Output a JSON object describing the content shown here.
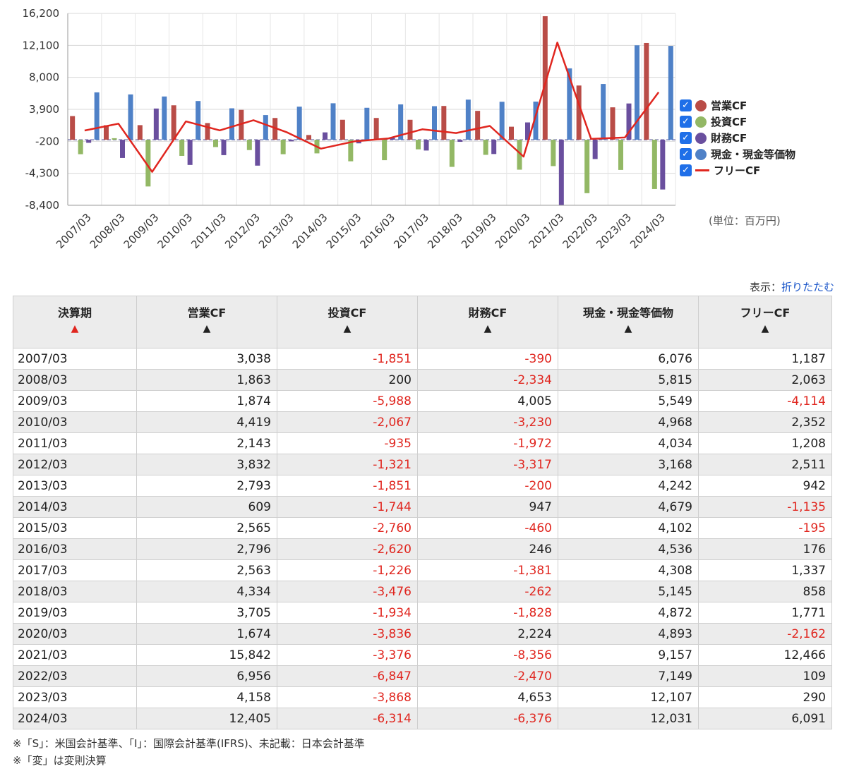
{
  "chart_data": {
    "type": "bar",
    "categories": [
      "2007/03",
      "2008/03",
      "2009/03",
      "2010/03",
      "2011/03",
      "2012/03",
      "2013/03",
      "2014/03",
      "2015/03",
      "2016/03",
      "2017/03",
      "2018/03",
      "2019/03",
      "2020/03",
      "2021/03",
      "2022/03",
      "2023/03",
      "2024/03"
    ],
    "series": [
      {
        "name": "営業CF",
        "type": "bar",
        "color": "#b94c47",
        "values": [
          3038,
          1863,
          1874,
          4419,
          2143,
          3832,
          2793,
          609,
          2565,
          2796,
          2563,
          4334,
          3705,
          1674,
          15842,
          6956,
          4158,
          12405
        ]
      },
      {
        "name": "投資CF",
        "type": "bar",
        "color": "#93b865",
        "values": [
          -1851,
          200,
          -5988,
          -2067,
          -935,
          -1321,
          -1851,
          -1744,
          -2760,
          -2620,
          -1226,
          -3476,
          -1934,
          -3836,
          -3376,
          -6847,
          -3868,
          -6314
        ]
      },
      {
        "name": "財務CF",
        "type": "bar",
        "color": "#6a4f9e",
        "values": [
          -390,
          -2334,
          4005,
          -3230,
          -1972,
          -3317,
          -200,
          947,
          -460,
          246,
          -1381,
          -262,
          -1828,
          2224,
          -8356,
          -2470,
          4653,
          -6376
        ]
      },
      {
        "name": "現金・現金等価物",
        "type": "bar",
        "color": "#4f81c7",
        "values": [
          6076,
          5815,
          5549,
          4968,
          4034,
          3168,
          4242,
          4679,
          4102,
          4536,
          4308,
          5145,
          4872,
          4893,
          9157,
          7149,
          12107,
          12031
        ]
      },
      {
        "name": "フリーCF",
        "type": "line",
        "color": "#e0261f",
        "values": [
          1187,
          2063,
          -4114,
          2352,
          1208,
          2511,
          942,
          -1135,
          -195,
          176,
          1337,
          858,
          1771,
          -2162,
          12466,
          109,
          290,
          6091
        ]
      }
    ],
    "yticks": [
      "16,200",
      "12,100",
      "8,000",
      "3,900",
      "-200",
      "-4,300",
      "-8,400"
    ],
    "ytick_values": [
      16200,
      12100,
      8000,
      3900,
      -200,
      -4300,
      -8400
    ],
    "ylim": [
      -8400,
      16200
    ],
    "grid": true,
    "legend_position": "right",
    "unit": "(単位：百万円)"
  },
  "legend": {
    "check_mark": "✓",
    "items": [
      "営業CF",
      "投資CF",
      "財務CF",
      "現金・現金等価物",
      "フリーCF"
    ]
  },
  "display": {
    "label": "表示：",
    "link": "折りたたむ"
  },
  "table": {
    "headers": [
      "決算期",
      "営業CF",
      "投資CF",
      "財務CF",
      "現金・現金等価物",
      "フリーCF"
    ],
    "sort_arrow": "▲",
    "rows": [
      [
        "2007/03",
        "3,038",
        "-1,851",
        "-390",
        "6,076",
        "1,187"
      ],
      [
        "2008/03",
        "1,863",
        "200",
        "-2,334",
        "5,815",
        "2,063"
      ],
      [
        "2009/03",
        "1,874",
        "-5,988",
        "4,005",
        "5,549",
        "-4,114"
      ],
      [
        "2010/03",
        "4,419",
        "-2,067",
        "-3,230",
        "4,968",
        "2,352"
      ],
      [
        "2011/03",
        "2,143",
        "-935",
        "-1,972",
        "4,034",
        "1,208"
      ],
      [
        "2012/03",
        "3,832",
        "-1,321",
        "-3,317",
        "3,168",
        "2,511"
      ],
      [
        "2013/03",
        "2,793",
        "-1,851",
        "-200",
        "4,242",
        "942"
      ],
      [
        "2014/03",
        "609",
        "-1,744",
        "947",
        "4,679",
        "-1,135"
      ],
      [
        "2015/03",
        "2,565",
        "-2,760",
        "-460",
        "4,102",
        "-195"
      ],
      [
        "2016/03",
        "2,796",
        "-2,620",
        "246",
        "4,536",
        "176"
      ],
      [
        "2017/03",
        "2,563",
        "-1,226",
        "-1,381",
        "4,308",
        "1,337"
      ],
      [
        "2018/03",
        "4,334",
        "-3,476",
        "-262",
        "5,145",
        "858"
      ],
      [
        "2019/03",
        "3,705",
        "-1,934",
        "-1,828",
        "4,872",
        "1,771"
      ],
      [
        "2020/03",
        "1,674",
        "-3,836",
        "2,224",
        "4,893",
        "-2,162"
      ],
      [
        "2021/03",
        "15,842",
        "-3,376",
        "-8,356",
        "9,157",
        "12,466"
      ],
      [
        "2022/03",
        "6,956",
        "-6,847",
        "-2,470",
        "7,149",
        "109"
      ],
      [
        "2023/03",
        "4,158",
        "-3,868",
        "4,653",
        "12,107",
        "290"
      ],
      [
        "2024/03",
        "12,405",
        "-6,314",
        "-6,376",
        "12,031",
        "6,091"
      ]
    ]
  },
  "notes": [
    "※「S」：米国会計基準、「I」：国際会計基準(IFRS)、未記載：日本会計基準",
    "※「変」は変則決算"
  ]
}
